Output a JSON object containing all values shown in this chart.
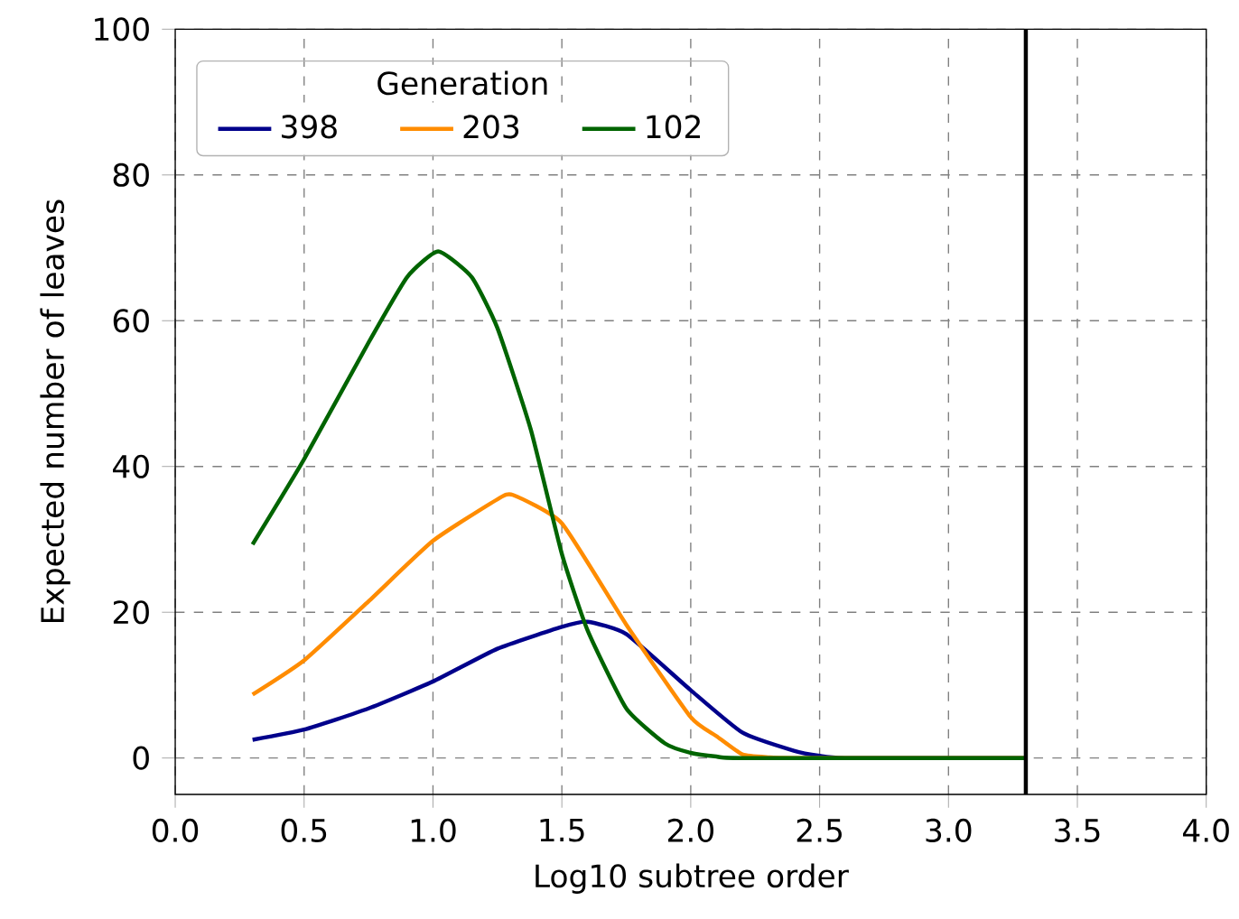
{
  "chart_data": {
    "type": "line",
    "xlabel": "Log10 subtree order",
    "ylabel": "Expected number of leaves",
    "legend_title": "Generation",
    "legend": "top left",
    "grid": true,
    "line_style": "solid",
    "marker": "none",
    "xlim": [
      0,
      4
    ],
    "ylim": [
      -5,
      100
    ],
    "xticks": [
      {
        "value": 0,
        "label": "0.0"
      },
      {
        "value": 0.5,
        "label": "0.5"
      },
      {
        "value": 1,
        "label": "1.0"
      },
      {
        "value": 1.5,
        "label": "1.5"
      },
      {
        "value": 2,
        "label": "2.0"
      },
      {
        "value": 2.5,
        "label": "2.5"
      },
      {
        "value": 3,
        "label": "3.0"
      },
      {
        "value": 3.5,
        "label": "3.5"
      },
      {
        "value": 4,
        "label": "4.0"
      }
    ],
    "yticks": [
      0,
      20,
      40,
      60,
      80,
      100
    ],
    "ref_lines": [
      {
        "axis": "x",
        "value": 3.3,
        "color": "#000000"
      }
    ],
    "series": [
      {
        "name": "398",
        "color": "#00008b",
        "x": [
          0.3,
          0.5,
          0.75,
          1.0,
          1.25,
          1.5,
          1.6,
          1.75,
          2.0,
          2.2,
          2.4,
          2.5,
          2.6,
          3.3
        ],
        "values": [
          2.5,
          3.9,
          6.8,
          10.5,
          15,
          18,
          18.7,
          17,
          9.3,
          3.5,
          1,
          0.3,
          0,
          0
        ]
      },
      {
        "name": "203",
        "color": "#ff8c00",
        "x": [
          0.3,
          0.5,
          0.75,
          1.0,
          1.25,
          1.31,
          1.5,
          1.75,
          2.0,
          2.1,
          2.2,
          2.3,
          2.4,
          3.3
        ],
        "values": [
          8.7,
          13.4,
          21.5,
          29.8,
          35.5,
          36.1,
          32.2,
          18.3,
          5.6,
          3,
          0.5,
          0.1,
          0,
          0
        ]
      },
      {
        "name": "102",
        "color": "#006400",
        "x": [
          0.3,
          0.5,
          0.75,
          0.9,
          1.02,
          1.15,
          1.25,
          1.38,
          1.5,
          1.6,
          1.75,
          1.9,
          2.0,
          2.1,
          2.2,
          3.3
        ],
        "values": [
          29.3,
          41,
          57,
          66,
          69.5,
          66,
          59,
          45,
          28,
          17.5,
          6.8,
          2,
          0.7,
          0.2,
          0,
          0
        ]
      }
    ]
  }
}
